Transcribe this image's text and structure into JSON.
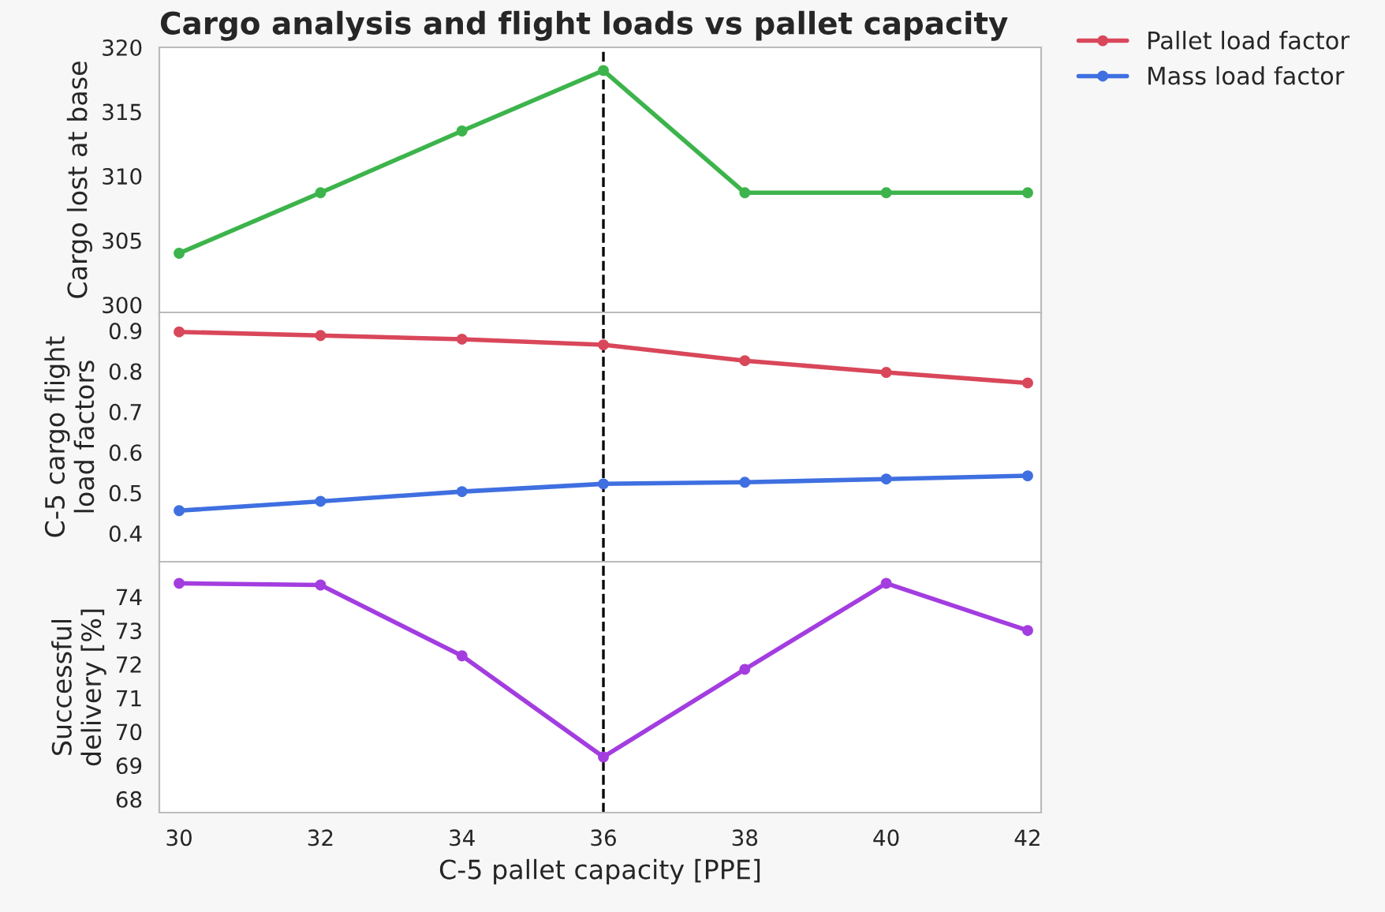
{
  "chart_data": [
    {
      "type": "line",
      "title": "Cargo analysis and flight loads vs pallet capacity",
      "ylabel": "Cargo lost at base",
      "x": [
        30,
        32,
        34,
        36,
        38,
        40,
        42
      ],
      "xlim": [
        29.72,
        42.19
      ],
      "xticks": [
        30,
        32,
        34,
        36,
        38,
        40,
        42
      ],
      "ylim": [
        299.4,
        320
      ],
      "yticks": [
        300,
        305,
        310,
        315,
        320
      ],
      "tick_labels": "y",
      "marker": "circle",
      "grid": false,
      "legend": false,
      "series": [
        {
          "color": "#3cb44b",
          "values": [
            304,
            308.7,
            313.5,
            318.2,
            308.7,
            308.7,
            308.7
          ]
        }
      ],
      "ref_lines": [
        {
          "axis": "x",
          "value": 36,
          "color": "#000000",
          "line_style": "dashed"
        }
      ]
    },
    {
      "type": "line",
      "ylabel": "C-5 cargo flight\nload factors",
      "x": [
        30,
        32,
        34,
        36,
        38,
        40,
        42
      ],
      "xlim": [
        29.72,
        42.19
      ],
      "xticks": [
        30,
        32,
        34,
        36,
        38,
        40,
        42
      ],
      "ylim": [
        0.33,
        0.945
      ],
      "yticks": [
        0.4,
        0.5,
        0.6,
        0.7,
        0.8,
        0.9
      ],
      "tick_labels": "y",
      "marker": "circle",
      "grid": false,
      "legend": "top right",
      "series": [
        {
          "name": "Pallet load factor",
          "color": "#d9475a",
          "values": [
            0.897,
            0.888,
            0.879,
            0.865,
            0.826,
            0.797,
            0.771
          ]
        },
        {
          "name": "Mass load factor",
          "color": "#3f6fe0",
          "values": [
            0.456,
            0.479,
            0.503,
            0.522,
            0.526,
            0.534,
            0.542
          ]
        }
      ],
      "ref_lines": [
        {
          "axis": "x",
          "value": 36,
          "color": "#000000",
          "line_style": "dashed"
        }
      ]
    },
    {
      "type": "line",
      "ylabel": "Successful\ndelivery [%]",
      "xlabel": "C-5 pallet capacity [PPE]",
      "x": [
        30,
        32,
        34,
        36,
        38,
        40,
        42
      ],
      "xlim": [
        29.72,
        42.19
      ],
      "xticks": [
        30,
        32,
        34,
        36,
        38,
        40,
        42
      ],
      "ylim": [
        67.6,
        75.04
      ],
      "yticks": [
        68,
        69,
        70,
        71,
        72,
        73,
        74
      ],
      "marker": "circle",
      "grid": false,
      "legend": false,
      "series": [
        {
          "color": "#a33de0",
          "values": [
            74.4,
            74.35,
            72.25,
            69.25,
            71.85,
            74.4,
            73.0
          ]
        }
      ],
      "ref_lines": [
        {
          "axis": "x",
          "value": 36,
          "color": "#000000",
          "line_style": "dashed"
        }
      ]
    }
  ]
}
